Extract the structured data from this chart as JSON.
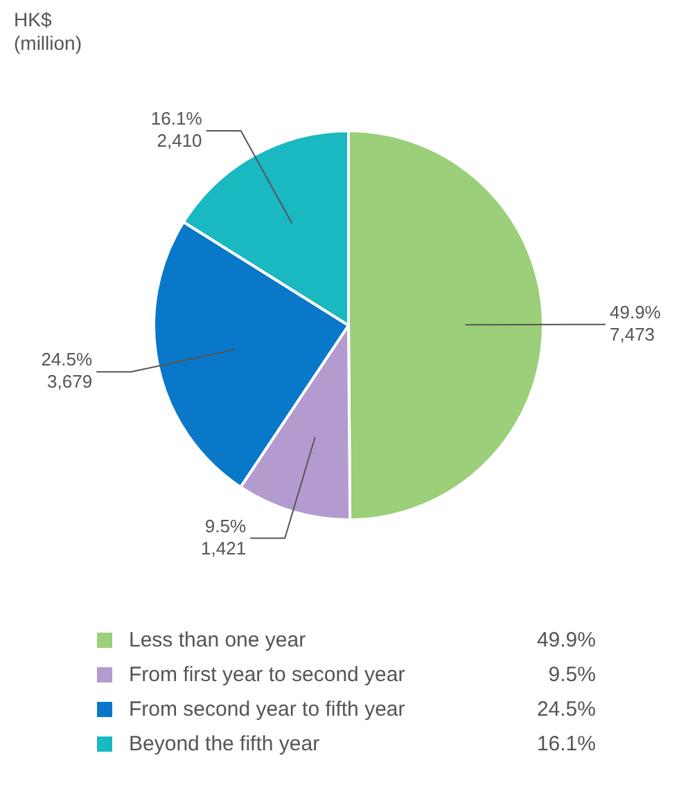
{
  "chart_data": {
    "type": "pie",
    "title": "HK$",
    "subtitle": "(million)",
    "categories": [
      "Less than one year",
      "From first year to second year",
      "From second year to fifth year",
      "Beyond the fifth year"
    ],
    "values": [
      7473,
      1421,
      3679,
      2410
    ],
    "colors": [
      "#9bcf7a",
      "#b39bd0",
      "#0a78c8",
      "#1ab8c0"
    ],
    "value_labels": [
      "49.9%\n7,473",
      "9.5%\n1,421",
      "24.5%\n3,679",
      "16.1%\n2,410"
    ],
    "annotations": [
      "49.9%",
      "9.5%",
      "24.5%",
      "16.1%"
    ],
    "legend": "bottom"
  }
}
